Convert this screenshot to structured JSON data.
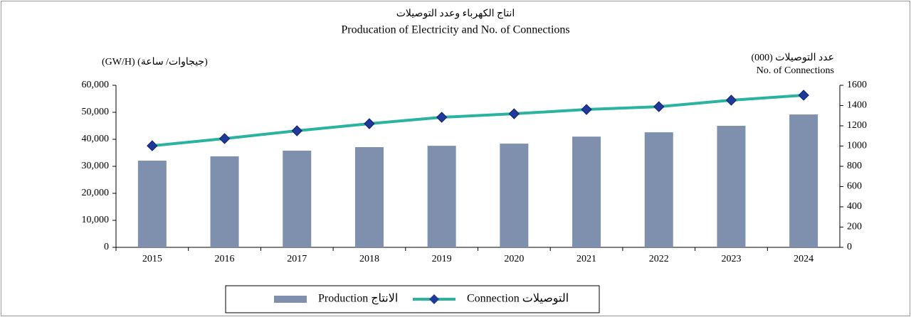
{
  "chart_data": {
    "type": "bar_line",
    "title": "انتاج الكهرباء وعدد التوصيلات",
    "subtitle": "Producation of Electricity and No. of Connections",
    "y_label": "(GW/H) (جيجاوات/ ساعة)",
    "y2_label": [
      "عدد التوصيلات (000)",
      "No. of Connections"
    ],
    "categories": [
      "2015",
      "2016",
      "2017",
      "2018",
      "2019",
      "2020",
      "2021",
      "2022",
      "2023",
      "2024"
    ],
    "series": [
      {
        "name": "Production الانتاج",
        "type": "bar",
        "color": "#7f8fae",
        "values": [
          32100,
          33700,
          35800,
          37100,
          37600,
          38400,
          41000,
          42600,
          45000,
          49200
        ]
      },
      {
        "name": "Connection  التوصيلات",
        "type": "line",
        "axis": "y2",
        "color": "#2ab3a0",
        "marker_color": "#1f3a9a",
        "values": [
          1003,
          1074,
          1151,
          1221,
          1284,
          1319,
          1361,
          1389,
          1453,
          1502
        ]
      }
    ],
    "ylim": [
      0,
      60000
    ],
    "yticks": [
      0,
      {
        "value": 10000,
        "label": "10,000"
      },
      {
        "value": 20000,
        "label": "20,000"
      },
      {
        "value": 30000,
        "label": "30,000"
      },
      {
        "value": 40000,
        "label": "40,000"
      },
      {
        "value": 50000,
        "label": "50,000"
      },
      {
        "value": 60000,
        "label": "60,000"
      }
    ],
    "y2lim": [
      0,
      1600
    ],
    "y2ticks": [
      0,
      200,
      400,
      600,
      800,
      1000,
      1200,
      1400,
      1600
    ],
    "legend": "bottom"
  }
}
